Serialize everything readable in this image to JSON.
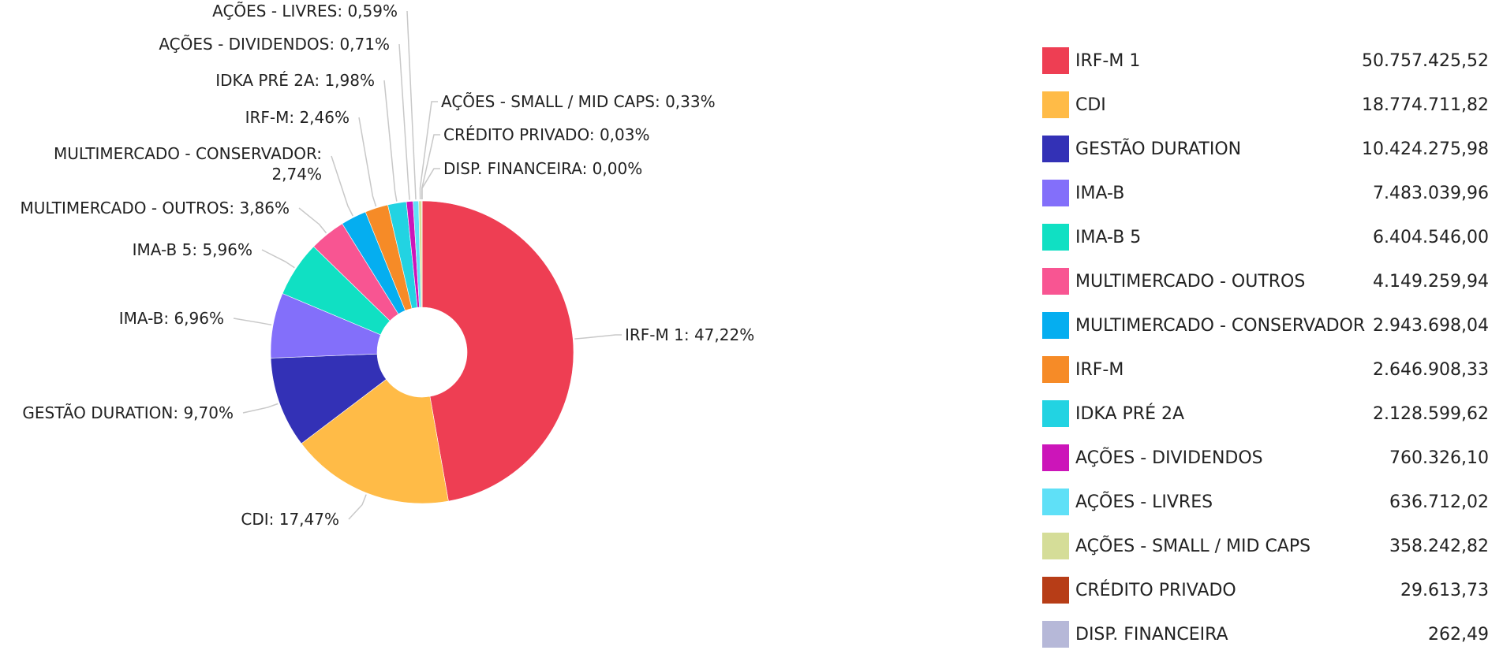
{
  "chart_data": {
    "type": "pie",
    "donut": true,
    "legend_position": "right",
    "slices": [
      {
        "label": "IRF-M 1",
        "value": 50757425.52,
        "value_text": "50.757.425,52",
        "percent_text": "47,22%",
        "color": "#ee3e53"
      },
      {
        "label": "CDI",
        "value": 18774711.82,
        "value_text": "18.774.711,82",
        "percent_text": "17,47%",
        "color": "#ffbb47"
      },
      {
        "label": "GESTÃO DURATION",
        "value": 10424275.98,
        "value_text": "10.424.275,98",
        "percent_text": "9,70%",
        "color": "#3331b6"
      },
      {
        "label": "IMA-B",
        "value": 7483039.96,
        "value_text": "7.483.039,96",
        "percent_text": "6,96%",
        "color": "#836ffa"
      },
      {
        "label": "IMA-B 5",
        "value": 6404546.0,
        "value_text": "6.404.546,00",
        "percent_text": "5,96%",
        "color": "#10e0c3"
      },
      {
        "label": "MULTIMERCADO - OUTROS",
        "value": 4149259.94,
        "value_text": "4.149.259,94",
        "percent_text": "3,86%",
        "color": "#f85592"
      },
      {
        "label": "MULTIMERCADO - CONSERVADOR",
        "value": 2943698.04,
        "value_text": "2.943.698,04",
        "percent_text": "2,74%",
        "color": "#05aef0"
      },
      {
        "label": "IRF-M",
        "value": 2646908.33,
        "value_text": "2.646.908,33",
        "percent_text": "2,46%",
        "color": "#f68b27"
      },
      {
        "label": "IDKA PRÉ 2A",
        "value": 2128599.62,
        "value_text": "2.128.599,62",
        "percent_text": "1,98%",
        "color": "#22d3e2"
      },
      {
        "label": "AÇÕES - DIVIDENDOS",
        "value": 760326.1,
        "value_text": "760.326,10",
        "percent_text": "0,71%",
        "color": "#cc15b9"
      },
      {
        "label": "AÇÕES - LIVRES",
        "value": 636712.02,
        "value_text": "636.712,02",
        "percent_text": "0,59%",
        "color": "#5fe0f7"
      },
      {
        "label": "AÇÕES - SMALL / MID CAPS",
        "value": 358242.82,
        "value_text": "358.242,82",
        "percent_text": "0,33%",
        "color": "#d5dd98"
      },
      {
        "label": "CRÉDITO PRIVADO",
        "value": 29613.73,
        "value_text": "29.613,73",
        "percent_text": "0,03%",
        "color": "#b73d17"
      },
      {
        "label": "DISP. FINANCEIRA",
        "value": 262.49,
        "value_text": "262,49",
        "percent_text": "0,00%",
        "color": "#b6b8d8"
      }
    ]
  }
}
